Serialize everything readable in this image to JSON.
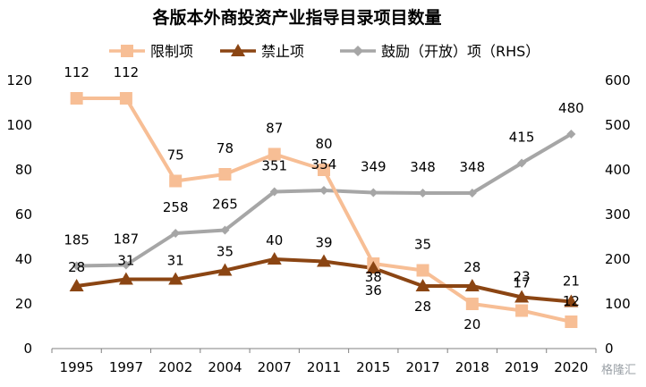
{
  "chart_data": {
    "type": "line",
    "title": "各版本外商投资产业指导目录项目数量",
    "categories": [
      "1995",
      "1997",
      "2002",
      "2004",
      "2007",
      "2011",
      "2015",
      "2017",
      "2018",
      "2019",
      "2020"
    ],
    "y_left": {
      "min": 0,
      "max": 120,
      "step": 20,
      "ticks": [
        "0",
        "20",
        "40",
        "60",
        "80",
        "100",
        "120"
      ]
    },
    "y_right": {
      "min": 0,
      "max": 600,
      "step": 100,
      "ticks": [
        "0",
        "100",
        "200",
        "300",
        "400",
        "500",
        "600"
      ]
    },
    "legend_position": "top",
    "grid": false,
    "series": [
      {
        "name": "限制项",
        "axis": "left",
        "color": "#F7BE95",
        "marker": "square",
        "values": [
          112,
          112,
          75,
          78,
          87,
          80,
          38,
          35,
          20,
          17,
          12
        ],
        "labels": [
          "112",
          "112",
          "75",
          "78",
          "87",
          "80",
          "38",
          "35",
          "20",
          "",
          "12"
        ]
      },
      {
        "name": "禁止项",
        "axis": "left",
        "color": "#8B4513",
        "marker": "triangle",
        "values": [
          28,
          31,
          31,
          35,
          40,
          39,
          36,
          28,
          28,
          23,
          21
        ],
        "labels": [
          "28",
          "31",
          "31",
          "35",
          "40",
          "39",
          "36",
          "28",
          "28",
          "23",
          "21"
        ]
      },
      {
        "name": "鼓励（开放）项（RHS）",
        "axis": "right",
        "color": "#A6A6A6",
        "marker": "diamond",
        "values": [
          185,
          187,
          258,
          265,
          351,
          354,
          349,
          348,
          348,
          415,
          480
        ],
        "labels": [
          "185",
          "187",
          "258",
          "265",
          "351",
          "354",
          "349",
          "348",
          "348",
          "415",
          "480"
        ]
      }
    ],
    "label_row_extra": [
      "17"
    ],
    "watermark": "格隆汇"
  }
}
